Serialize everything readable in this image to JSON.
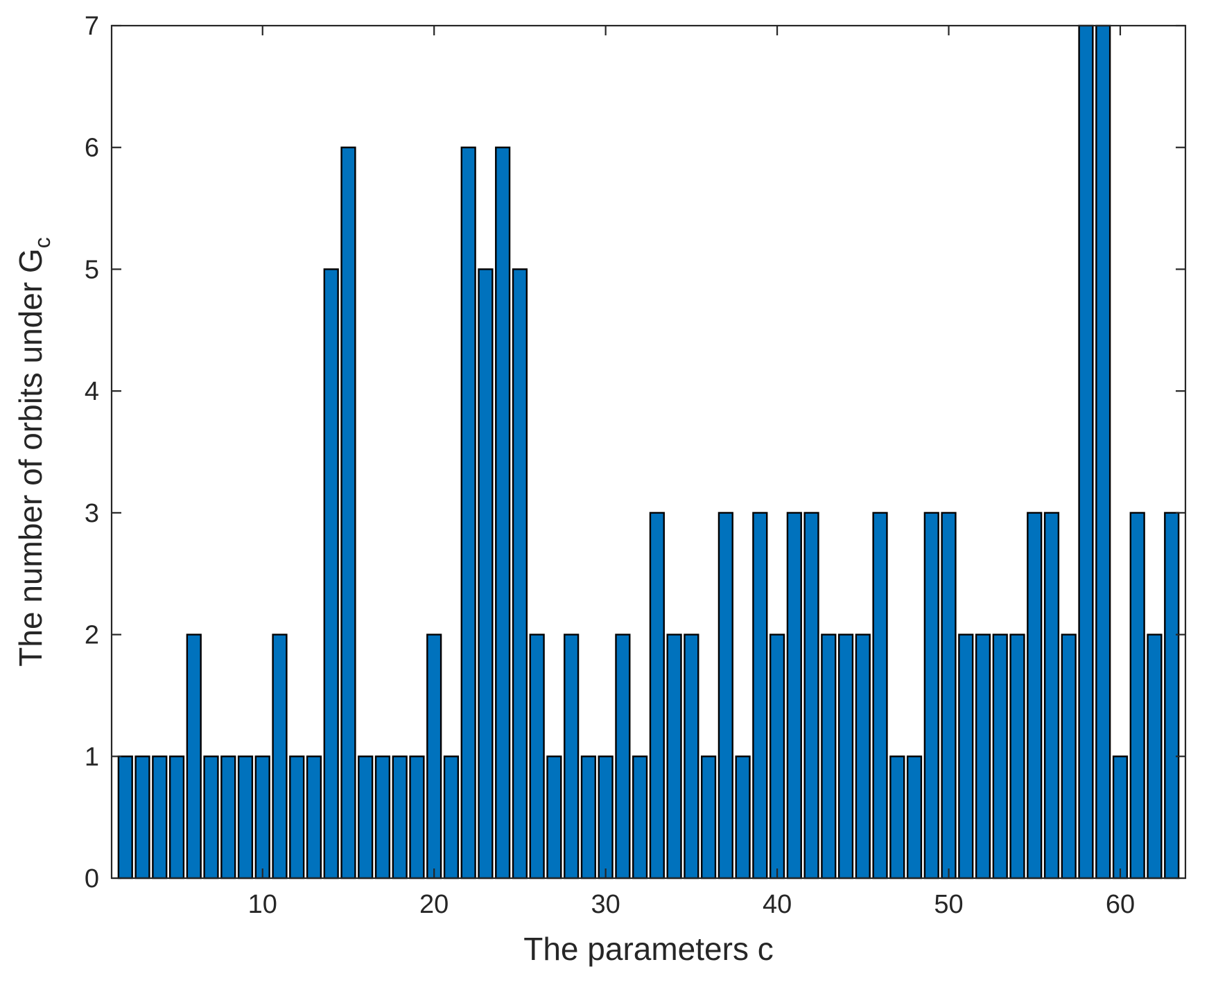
{
  "chart_data": {
    "type": "bar",
    "xlabel": "The parameters c",
    "ylabel": "The number of orbits under G",
    "ylabel_subscript": "c",
    "x": [
      2,
      3,
      4,
      5,
      6,
      7,
      8,
      9,
      10,
      11,
      12,
      13,
      14,
      15,
      16,
      17,
      18,
      19,
      20,
      21,
      22,
      23,
      24,
      25,
      26,
      27,
      28,
      29,
      30,
      31,
      32,
      33,
      34,
      35,
      36,
      37,
      38,
      39,
      40,
      41,
      42,
      43,
      44,
      45,
      46,
      47,
      48,
      49,
      50,
      51,
      52,
      53,
      54,
      55,
      56,
      57,
      58,
      59,
      60,
      61,
      62,
      63
    ],
    "values": [
      1,
      1,
      1,
      1,
      2,
      1,
      1,
      1,
      1,
      2,
      1,
      1,
      5,
      6,
      1,
      1,
      1,
      1,
      2,
      1,
      6,
      5,
      6,
      5,
      2,
      1,
      2,
      1,
      1,
      2,
      1,
      3,
      2,
      2,
      1,
      3,
      1,
      3,
      2,
      3,
      3,
      2,
      2,
      2,
      3,
      1,
      1,
      3,
      3,
      2,
      2,
      2,
      2,
      3,
      3,
      2,
      7,
      7,
      1,
      3,
      2,
      3
    ],
    "xlim": [
      1.2,
      63.8
    ],
    "ylim": [
      0,
      7
    ],
    "xticks": [
      10,
      20,
      30,
      40,
      50,
      60
    ],
    "yticks": [
      0,
      1,
      2,
      3,
      4,
      5,
      6,
      7
    ],
    "bar_color": "#0072BD",
    "edge_color": "#000000",
    "grid": false,
    "box": true
  }
}
